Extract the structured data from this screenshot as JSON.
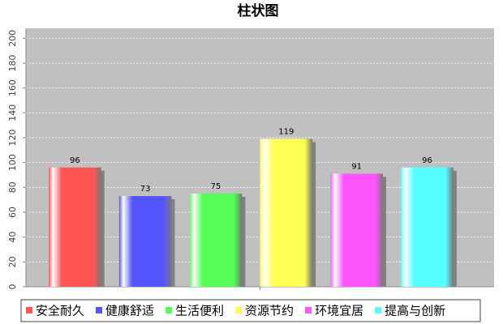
{
  "chart_data": {
    "type": "bar",
    "title": "柱状图",
    "categories": [
      null
    ],
    "series": [
      {
        "name": "安全耐久",
        "color": "#ff5555",
        "values": [
          96
        ]
      },
      {
        "name": "健康舒适",
        "color": "#5555ff",
        "values": [
          73
        ]
      },
      {
        "name": "生活便利",
        "color": "#55ff55",
        "values": [
          75
        ]
      },
      {
        "name": "资源节约",
        "color": "#ffff55",
        "values": [
          119
        ]
      },
      {
        "name": "环境宜居",
        "color": "#ff55ff",
        "values": [
          91
        ]
      },
      {
        "name": "提高与创新",
        "color": "#55ffff",
        "values": [
          96
        ]
      }
    ],
    "ylim": [
      0,
      208
    ],
    "yticks": [
      0,
      20,
      40,
      60,
      80,
      100,
      120,
      140,
      160,
      180,
      200
    ],
    "grid": true,
    "legend": "bottom"
  }
}
